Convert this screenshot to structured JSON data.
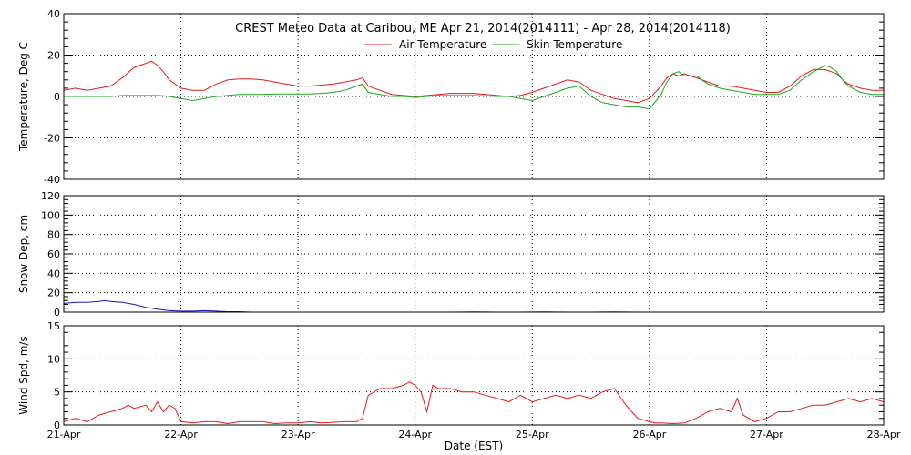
{
  "title": "CREST Meteo Data at Caribou, ME   Apr 21, 2014(2014111) - Apr 28, 2014(2014118)",
  "xlabel": "Date (EST)",
  "x_ticks": [
    "21-Apr",
    "22-Apr",
    "23-Apr",
    "24-Apr",
    "25-Apr",
    "26-Apr",
    "27-Apr",
    "28-Apr"
  ],
  "chart_data": [
    {
      "type": "line",
      "ylabel": "Temperature, Deg C",
      "ylim": [
        -40,
        40
      ],
      "y_ticks": [
        -40,
        -20,
        0,
        20,
        40
      ],
      "xlim": [
        0,
        7
      ],
      "grid": true,
      "legend_placement": "top-center",
      "series": [
        {
          "name": "Air Temperature",
          "color": "#e41a1c",
          "x": [
            0,
            0.1,
            0.2,
            0.3,
            0.4,
            0.5,
            0.6,
            0.7,
            0.75,
            0.8,
            0.85,
            0.9,
            1.0,
            1.1,
            1.2,
            1.3,
            1.4,
            1.5,
            1.6,
            1.7,
            1.8,
            1.9,
            2.0,
            2.1,
            2.2,
            2.3,
            2.4,
            2.5,
            2.55,
            2.6,
            2.7,
            2.8,
            2.9,
            3.0,
            3.1,
            3.2,
            3.3,
            3.4,
            3.5,
            3.6,
            3.7,
            3.8,
            3.9,
            4.0,
            4.1,
            4.2,
            4.3,
            4.4,
            4.5,
            4.6,
            4.7,
            4.8,
            4.9,
            5.0,
            5.1,
            5.15,
            5.2,
            5.25,
            5.3,
            5.4,
            5.5,
            5.6,
            5.7,
            5.8,
            5.9,
            6.0,
            6.1,
            6.2,
            6.3,
            6.4,
            6.5,
            6.55,
            6.6,
            6.65,
            6.7,
            6.8,
            6.9,
            7.0
          ],
          "values": [
            3,
            4,
            3,
            4,
            5,
            9,
            14,
            16,
            17,
            15,
            12,
            8,
            4,
            3,
            3,
            6,
            8,
            8.5,
            8.5,
            8,
            7,
            6,
            5,
            5,
            5.5,
            6,
            7,
            8,
            9,
            5,
            3,
            1,
            0.5,
            0,
            0.5,
            1,
            1.5,
            1.5,
            1.5,
            1,
            0.5,
            0,
            0.5,
            2,
            4,
            6,
            8,
            7,
            3,
            1,
            -1,
            -2,
            -3,
            -1,
            5,
            9,
            11,
            10,
            11,
            9,
            7,
            5,
            5,
            4,
            3,
            2,
            2,
            5,
            10,
            13,
            13,
            12,
            11,
            8,
            6,
            4,
            3,
            3
          ]
        },
        {
          "name": "Skin Temperature",
          "color": "#1ca81c",
          "x": [
            0,
            0.1,
            0.2,
            0.3,
            0.4,
            0.5,
            0.6,
            0.7,
            0.75,
            0.8,
            0.85,
            0.9,
            1.0,
            1.1,
            1.2,
            1.3,
            1.4,
            1.5,
            1.6,
            1.7,
            1.8,
            1.9,
            2.0,
            2.1,
            2.2,
            2.3,
            2.4,
            2.5,
            2.55,
            2.6,
            2.7,
            2.8,
            2.9,
            3.0,
            3.1,
            3.2,
            3.3,
            3.4,
            3.5,
            3.6,
            3.7,
            3.8,
            3.9,
            4.0,
            4.1,
            4.2,
            4.3,
            4.4,
            4.5,
            4.6,
            4.7,
            4.8,
            4.9,
            5.0,
            5.1,
            5.15,
            5.2,
            5.25,
            5.3,
            5.4,
            5.5,
            5.6,
            5.7,
            5.8,
            5.9,
            6.0,
            6.1,
            6.2,
            6.3,
            6.4,
            6.5,
            6.55,
            6.6,
            6.65,
            6.7,
            6.8,
            6.9,
            7.0
          ],
          "values": [
            0,
            0,
            0,
            0,
            0,
            0.5,
            0.5,
            0.5,
            0.5,
            0.5,
            0.3,
            0,
            -1,
            -2,
            -1,
            0,
            0.5,
            1,
            1,
            1,
            1.2,
            1.2,
            1.2,
            1.2,
            1.5,
            2,
            3,
            5,
            6,
            2,
            1,
            0,
            0,
            -0.5,
            0,
            0.5,
            0.5,
            0.5,
            0.5,
            0.3,
            0,
            0,
            -1,
            -2,
            0,
            2,
            4,
            5,
            0,
            -3,
            -4,
            -5,
            -5,
            -6,
            1,
            7,
            11,
            12,
            10,
            10,
            6,
            4,
            3,
            2,
            1,
            1,
            1,
            3,
            8,
            12,
            15,
            14,
            12,
            8,
            5,
            2,
            1,
            1
          ]
        }
      ]
    },
    {
      "type": "line",
      "ylabel": "Snow Dep, cm",
      "ylim": [
        0,
        120
      ],
      "y_ticks": [
        0,
        20,
        40,
        60,
        80,
        100,
        120
      ],
      "xlim": [
        0,
        7
      ],
      "grid": true,
      "series": [
        {
          "name": "",
          "color": "#1a1aa8",
          "x": [
            0,
            0.1,
            0.2,
            0.3,
            0.35,
            0.4,
            0.5,
            0.6,
            0.7,
            0.8,
            0.9,
            1.0,
            1.1,
            1.2,
            1.3,
            1.4,
            1.5,
            1.6,
            1.7
          ],
          "values": [
            9,
            10,
            10,
            11,
            12,
            11,
            10,
            8,
            5,
            3,
            1.5,
            1,
            1,
            1.5,
            1,
            0.5,
            0.5,
            0,
            0
          ]
        },
        {
          "name": "",
          "color": "#1a1aa8",
          "x": [
            3.15,
            3.3,
            3.5,
            3.7,
            3.9,
            4.1,
            4.3,
            4.5,
            4.7,
            4.9,
            5.05
          ],
          "values": [
            0,
            0,
            0.3,
            0,
            0,
            0.2,
            0,
            0,
            0.3,
            0,
            0
          ]
        }
      ]
    },
    {
      "type": "line",
      "ylabel": "Wind Spd, m/s",
      "ylim": [
        0,
        15
      ],
      "y_ticks": [
        0,
        5,
        10,
        15
      ],
      "xlim": [
        0,
        7
      ],
      "grid": true,
      "series": [
        {
          "name": "",
          "color": "#e41a1c",
          "x": [
            0,
            0.1,
            0.2,
            0.3,
            0.4,
            0.5,
            0.55,
            0.6,
            0.7,
            0.75,
            0.8,
            0.85,
            0.9,
            0.95,
            1.0,
            1.1,
            1.2,
            1.3,
            1.4,
            1.5,
            1.6,
            1.7,
            1.8,
            1.9,
            2.0,
            2.1,
            2.2,
            2.3,
            2.4,
            2.5,
            2.55,
            2.6,
            2.65,
            2.7,
            2.8,
            2.9,
            2.95,
            3.0,
            3.05,
            3.1,
            3.15,
            3.2,
            3.3,
            3.4,
            3.5,
            3.6,
            3.7,
            3.8,
            3.9,
            4.0,
            4.1,
            4.2,
            4.3,
            4.4,
            4.5,
            4.6,
            4.7,
            4.8,
            4.9,
            5.0,
            5.05,
            5.1,
            5.2,
            5.3,
            5.4,
            5.5,
            5.6,
            5.7,
            5.75,
            5.8,
            5.9,
            6.0,
            6.1,
            6.2,
            6.3,
            6.4,
            6.5,
            6.6,
            6.7,
            6.8,
            6.9,
            7.0
          ],
          "values": [
            0.5,
            1,
            0.5,
            1.5,
            2,
            2.5,
            3,
            2.5,
            3,
            2,
            3.5,
            2,
            3,
            2.5,
            0.5,
            0.3,
            0.5,
            0.5,
            0.2,
            0.5,
            0.5,
            0.5,
            0.2,
            0.3,
            0.3,
            0.5,
            0.3,
            0.4,
            0.5,
            0.5,
            1,
            4.5,
            5,
            5.5,
            5.5,
            6,
            6.5,
            6,
            5,
            2,
            6,
            5.5,
            5.5,
            5,
            5,
            4.5,
            4,
            3.5,
            4.5,
            3.5,
            4,
            4.5,
            4,
            4.5,
            4,
            5,
            5.5,
            3,
            1,
            0.5,
            0.3,
            0.3,
            0.2,
            0.3,
            1,
            2,
            2.5,
            2,
            4,
            1.5,
            0.5,
            1,
            2,
            2,
            2.5,
            3,
            3,
            3.5,
            4,
            3.5,
            4,
            3.5
          ]
        }
      ]
    }
  ]
}
